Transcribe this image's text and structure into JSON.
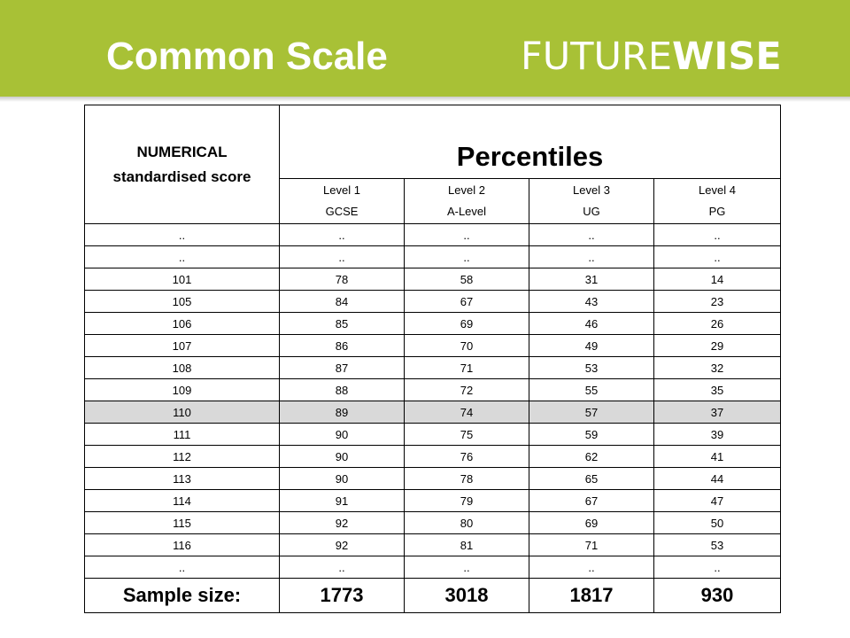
{
  "header": {
    "title": "Common Scale",
    "logo_light": "FUTURE",
    "logo_bold": "WISE",
    "background_color": "#a8c136"
  },
  "table": {
    "score_header_line1": "NUMERICAL",
    "score_header_line2": "standardised score",
    "percentiles_header": "Percentiles",
    "levels": [
      {
        "name": "Level 1",
        "sub": "GCSE"
      },
      {
        "name": "Level 2",
        "sub": "A-Level"
      },
      {
        "name": "Level 3",
        "sub": "UG"
      },
      {
        "name": "Level 4",
        "sub": "PG"
      }
    ],
    "rows": [
      [
        "..",
        "..",
        "..",
        "..",
        ".."
      ],
      [
        "..",
        "..",
        "..",
        "..",
        ".."
      ],
      [
        "101",
        "78",
        "58",
        "31",
        "14"
      ],
      [
        "105",
        "84",
        "67",
        "43",
        "23"
      ],
      [
        "106",
        "85",
        "69",
        "46",
        "26"
      ],
      [
        "107",
        "86",
        "70",
        "49",
        "29"
      ],
      [
        "108",
        "87",
        "71",
        "53",
        "32"
      ],
      [
        "109",
        "88",
        "72",
        "55",
        "35"
      ],
      [
        "110",
        "89",
        "74",
        "57",
        "37"
      ],
      [
        "111",
        "90",
        "75",
        "59",
        "39"
      ],
      [
        "112",
        "90",
        "76",
        "62",
        "41"
      ],
      [
        "113",
        "90",
        "78",
        "65",
        "44"
      ],
      [
        "114",
        "91",
        "79",
        "67",
        "47"
      ],
      [
        "115",
        "92",
        "80",
        "69",
        "50"
      ],
      [
        "116",
        "92",
        "81",
        "71",
        "53"
      ],
      [
        "..",
        "..",
        "..",
        "..",
        ".."
      ]
    ],
    "highlight_row_score": "110",
    "highlight_color": "#d9d9d9",
    "sample_label": "Sample size:",
    "sample_sizes": [
      "1773",
      "3018",
      "1817",
      "930"
    ]
  }
}
